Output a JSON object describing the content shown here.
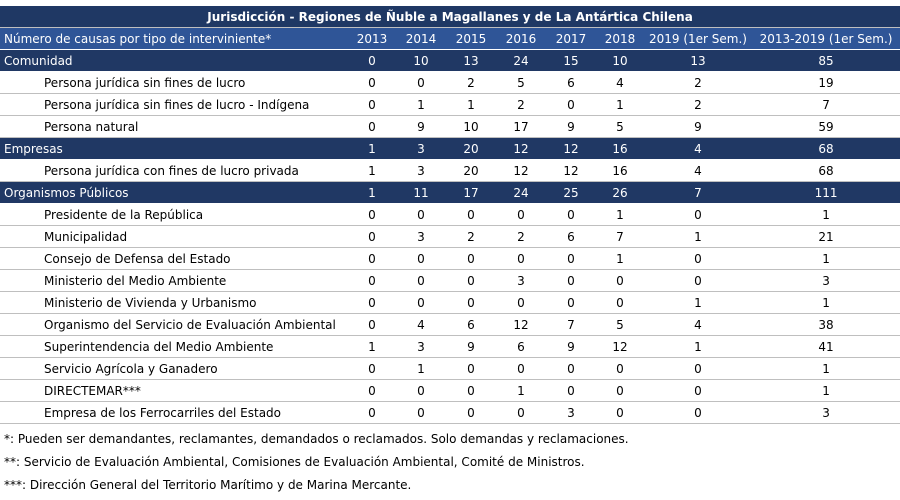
{
  "table": {
    "title": "Jurisdicción - Regiones de Ñuble a Magallanes y de La Antártica Chilena",
    "header": [
      "Número de causas por tipo de interviniente*",
      "2013",
      "2014",
      "2015",
      "2016",
      "2017",
      "2018",
      "2019 (1er Sem.)",
      "2013-2019 (1er Sem.)"
    ],
    "groups": [
      {
        "label": "Comunidad",
        "values": [
          0,
          10,
          13,
          24,
          15,
          10,
          13,
          85
        ],
        "rows": [
          {
            "label": "Persona jurídica sin fines de lucro",
            "values": [
              0,
              0,
              2,
              5,
              6,
              4,
              2,
              19
            ]
          },
          {
            "label": "Persona jurídica sin fines de lucro - Indígena",
            "values": [
              0,
              1,
              1,
              2,
              0,
              1,
              2,
              7
            ]
          },
          {
            "label": "Persona natural",
            "values": [
              0,
              9,
              10,
              17,
              9,
              5,
              9,
              59
            ]
          }
        ]
      },
      {
        "label": "Empresas",
        "values": [
          1,
          3,
          20,
          12,
          12,
          16,
          4,
          68
        ],
        "rows": [
          {
            "label": "Persona jurídica con fines de lucro privada",
            "values": [
              1,
              3,
              20,
              12,
              12,
              16,
              4,
              68
            ]
          }
        ]
      },
      {
        "label": "Organismos Públicos",
        "values": [
          1,
          11,
          17,
          24,
          25,
          26,
          7,
          111
        ],
        "rows": [
          {
            "label": "Presidente de la República",
            "values": [
              0,
              0,
              0,
              0,
              0,
              1,
              0,
              1
            ]
          },
          {
            "label": "Municipalidad",
            "values": [
              0,
              3,
              2,
              2,
              6,
              7,
              1,
              21
            ]
          },
          {
            "label": "Consejo de Defensa del Estado",
            "values": [
              0,
              0,
              0,
              0,
              0,
              1,
              0,
              1
            ]
          },
          {
            "label": "Ministerio del Medio Ambiente",
            "values": [
              0,
              0,
              0,
              3,
              0,
              0,
              0,
              3
            ]
          },
          {
            "label": "Ministerio de Vivienda y Urbanismo",
            "values": [
              0,
              0,
              0,
              0,
              0,
              0,
              1,
              1
            ]
          },
          {
            "label": "Organismo del Servicio de Evaluación Ambiental",
            "values": [
              0,
              4,
              6,
              12,
              7,
              5,
              4,
              38
            ]
          },
          {
            "label": "Superintendencia del Medio Ambiente",
            "values": [
              1,
              3,
              9,
              6,
              9,
              12,
              1,
              41
            ]
          },
          {
            "label": "Servicio Agrícola y Ganadero",
            "values": [
              0,
              1,
              0,
              0,
              0,
              0,
              0,
              1
            ]
          },
          {
            "label": "DIRECTEMAR***",
            "values": [
              0,
              0,
              0,
              1,
              0,
              0,
              0,
              1
            ]
          },
          {
            "label": "Empresa de los Ferrocarriles del Estado",
            "values": [
              0,
              0,
              0,
              0,
              3,
              0,
              0,
              3
            ]
          }
        ]
      }
    ],
    "footnotes": [
      "*: Pueden ser demandantes, reclamantes, demandados o reclamados. Solo demandas y reclamaciones.",
      "**: Servicio de Evaluación Ambiental, Comisiones de Evaluación Ambiental, Comité de Ministros.",
      "***: Dirección General del Territorio Marítimo y de Marina Mercante."
    ]
  }
}
